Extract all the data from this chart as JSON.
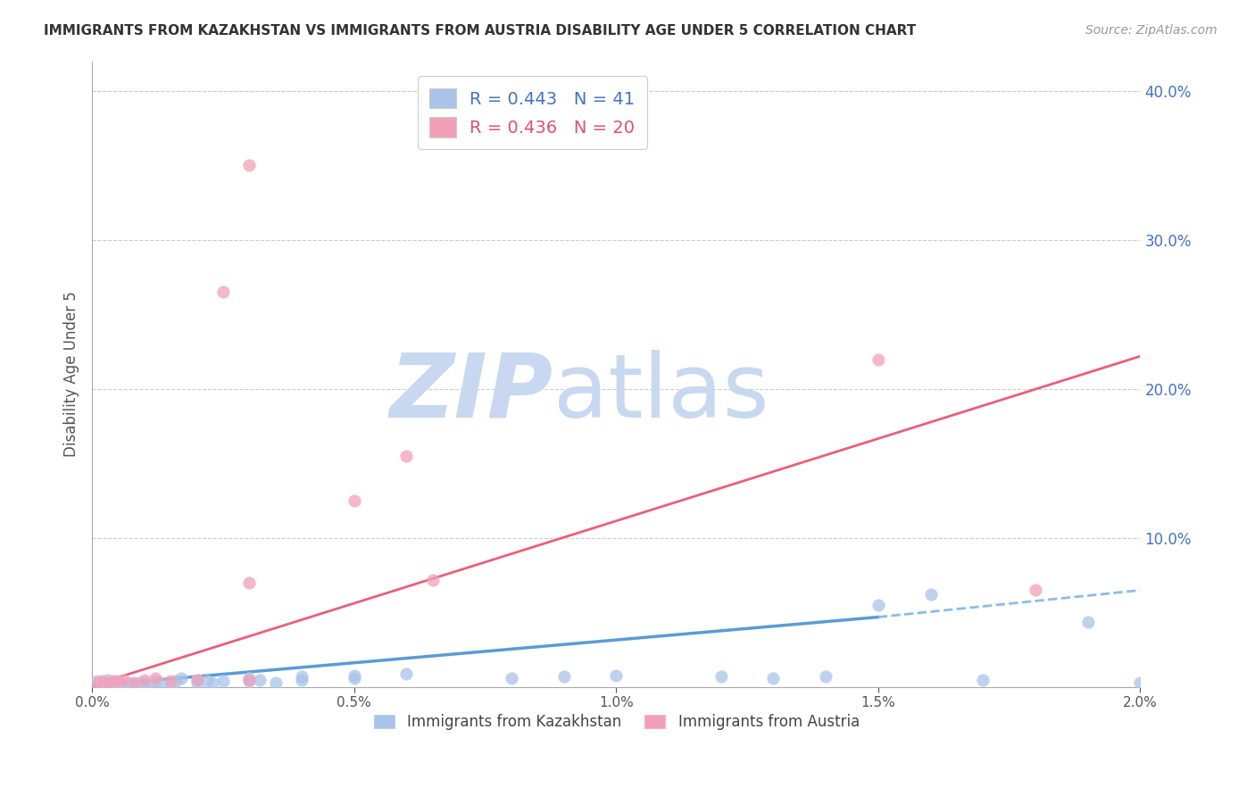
{
  "title": "IMMIGRANTS FROM KAZAKHSTAN VS IMMIGRANTS FROM AUSTRIA DISABILITY AGE UNDER 5 CORRELATION CHART",
  "source": "Source: ZipAtlas.com",
  "ylabel": "Disability Age Under 5",
  "legend_label_1": "Immigrants from Kazakhstan",
  "legend_label_2": "Immigrants from Austria",
  "R1": 0.443,
  "N1": 41,
  "R2": 0.436,
  "N2": 20,
  "color_kaz": "#A8C4E8",
  "color_aut": "#F2A0B8",
  "color_kaz_line_solid": "#5B9BD5",
  "color_kaz_line_dash": "#8BBCE8",
  "color_aut_line": "#E8607A",
  "color_title": "#333333",
  "color_source": "#999999",
  "color_right_axis": "#4472C4",
  "color_legend_text_kaz": "#4472C4",
  "color_legend_text_aut": "#E05070",
  "xlim": [
    0.0,
    0.02
  ],
  "ylim": [
    0.0,
    0.42
  ],
  "xticks": [
    0.0,
    0.005,
    0.01,
    0.015,
    0.02
  ],
  "xtick_labels": [
    "0.0%",
    "0.5%",
    "1.0%",
    "1.5%",
    "2.0%"
  ],
  "yticks_right": [
    0.0,
    0.1,
    0.2,
    0.3,
    0.4
  ],
  "ytick_labels_right": [
    "",
    "10.0%",
    "20.0%",
    "30.0%",
    "40.0%"
  ],
  "kaz_x": [
    0.0001,
    0.0002,
    0.0003,
    0.0004,
    0.0005,
    0.0006,
    0.0007,
    0.0008,
    0.0009,
    0.001,
    0.0011,
    0.0012,
    0.0013,
    0.0015,
    0.0016,
    0.0017,
    0.002,
    0.002,
    0.0022,
    0.0023,
    0.0025,
    0.003,
    0.003,
    0.0032,
    0.0035,
    0.004,
    0.004,
    0.005,
    0.005,
    0.006,
    0.008,
    0.009,
    0.01,
    0.012,
    0.013,
    0.014,
    0.015,
    0.016,
    0.017,
    0.019,
    0.02
  ],
  "kaz_y": [
    0.004,
    0.003,
    0.005,
    0.002,
    0.003,
    0.002,
    0.003,
    0.002,
    0.003,
    0.003,
    0.002,
    0.004,
    0.003,
    0.002,
    0.004,
    0.006,
    0.003,
    0.005,
    0.004,
    0.003,
    0.004,
    0.004,
    0.006,
    0.005,
    0.003,
    0.007,
    0.005,
    0.008,
    0.006,
    0.009,
    0.006,
    0.007,
    0.008,
    0.007,
    0.006,
    0.007,
    0.055,
    0.062,
    0.005,
    0.044,
    0.003
  ],
  "aut_x": [
    0.0001,
    0.0002,
    0.0003,
    0.0004,
    0.0005,
    0.0006,
    0.0008,
    0.001,
    0.0012,
    0.0015,
    0.002,
    0.0025,
    0.003,
    0.003,
    0.003,
    0.005,
    0.006,
    0.0065,
    0.015,
    0.018
  ],
  "aut_y": [
    0.003,
    0.004,
    0.003,
    0.004,
    0.004,
    0.005,
    0.003,
    0.005,
    0.006,
    0.004,
    0.005,
    0.265,
    0.005,
    0.35,
    0.07,
    0.125,
    0.155,
    0.072,
    0.22,
    0.065
  ],
  "kaz_line_x": [
    0.0,
    0.015,
    0.02
  ],
  "kaz_line_y_solid_end": 0.015,
  "kaz_line_y": [
    0.001,
    0.047,
    0.065
  ],
  "aut_line_x": [
    0.0,
    0.02
  ],
  "aut_line_y": [
    0.001,
    0.222
  ],
  "watermark_zip": "ZIP",
  "watermark_atlas": "atlas",
  "watermark_color": "#C8D8F0",
  "background_color": "#FFFFFF"
}
